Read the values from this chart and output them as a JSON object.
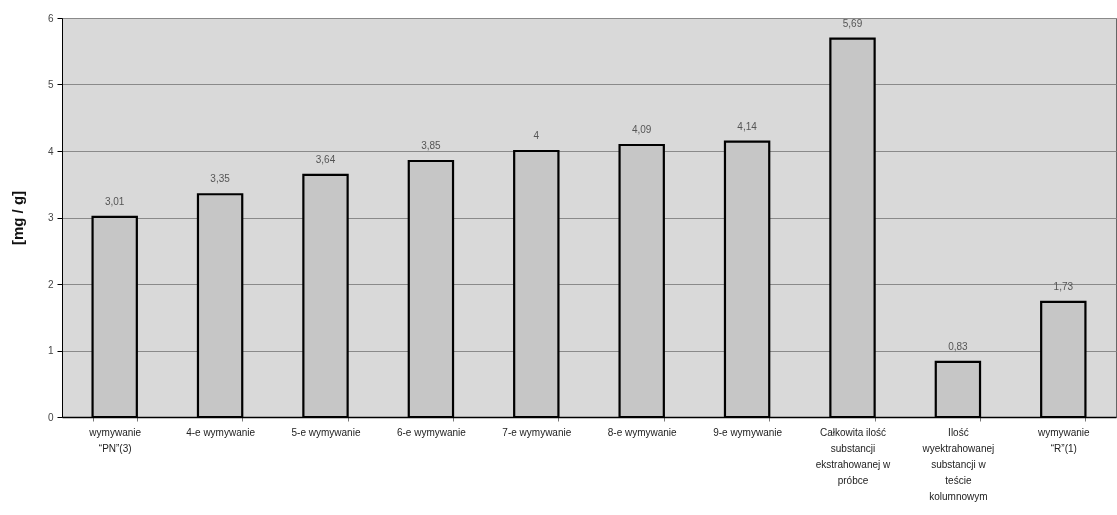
{
  "chart_data": {
    "type": "bar",
    "ylabel": "[mg / g]",
    "categories": [
      "wymywanie “PN”(3)",
      "4-e wymywanie",
      "5-e wymywanie",
      "6-e wymywanie",
      "7-e wymywanie",
      "8-e wymywanie",
      "9-e wymywanie",
      "Całkowita ilość substancji ekstrahowanej w próbce",
      "Ilość wyektrahowanej substancji w teście kolumnowym",
      "wymywanie “R”(1)"
    ],
    "values": [
      3.01,
      3.35,
      3.64,
      3.85,
      4,
      4.09,
      4.14,
      5.69,
      0.83,
      1.73
    ],
    "value_labels": [
      "3,01",
      "3,35",
      "3,64",
      "3,85",
      "4",
      "4,09",
      "4,14",
      "5,69",
      "0,83",
      "1,73"
    ],
    "color": "#c6c6c6",
    "ylim": [
      0,
      6
    ],
    "yticks": [
      0,
      1,
      2,
      3,
      4,
      5,
      6
    ],
    "grid": "y"
  }
}
